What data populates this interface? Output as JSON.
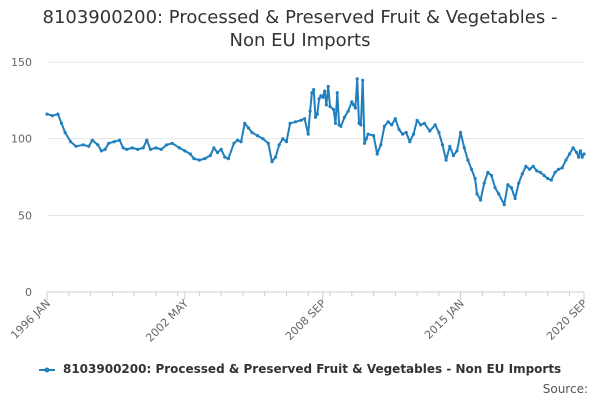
{
  "chart_data": {
    "type": "line",
    "title_lines": [
      "8103900200: Processed & Preserved Fruit & Vegetables -",
      "Non EU Imports"
    ],
    "xlabel": "",
    "ylabel": "",
    "ylim": [
      0,
      150
    ],
    "yticks": [
      0,
      50,
      100,
      150
    ],
    "xlim": [
      "1996-01",
      "2020-09"
    ],
    "xtick_labels": [
      {
        "date": "1996-01",
        "label": "1996 JAN"
      },
      {
        "date": "2002-05",
        "label": "2002 MAY"
      },
      {
        "date": "2008-09",
        "label": "2008 SEP"
      },
      {
        "date": "2015-01",
        "label": "2015 JAN"
      },
      {
        "date": "2020-09",
        "label": "2020 SEP"
      }
    ],
    "grid": true,
    "legend_position": "bottom",
    "series": [
      {
        "name": "8103900200: Processed & Preserved Fruit & Vegetables - Non EU Imports",
        "color": "#1f7fbf",
        "points": [
          [
            "1996-01",
            116
          ],
          [
            "1996-04",
            115
          ],
          [
            "1996-07",
            116
          ],
          [
            "1996-09",
            110
          ],
          [
            "1996-11",
            104
          ],
          [
            "1997-02",
            98
          ],
          [
            "1997-05",
            95
          ],
          [
            "1997-09",
            96
          ],
          [
            "1997-12",
            95
          ],
          [
            "1998-02",
            99
          ],
          [
            "1998-05",
            96
          ],
          [
            "1998-07",
            92
          ],
          [
            "1998-09",
            93
          ],
          [
            "1998-11",
            97
          ],
          [
            "1999-02",
            98
          ],
          [
            "1999-05",
            99
          ],
          [
            "1999-07",
            94
          ],
          [
            "1999-09",
            93
          ],
          [
            "1999-12",
            94
          ],
          [
            "2000-03",
            93
          ],
          [
            "2000-06",
            94
          ],
          [
            "2000-08",
            99
          ],
          [
            "2000-10",
            93
          ],
          [
            "2001-01",
            94
          ],
          [
            "2001-04",
            93
          ],
          [
            "2001-07",
            96
          ],
          [
            "2001-10",
            97
          ],
          [
            "2002-02",
            94
          ],
          [
            "2002-05",
            92
          ],
          [
            "2002-08",
            90
          ],
          [
            "2002-10",
            87
          ],
          [
            "2003-01",
            86
          ],
          [
            "2003-04",
            87
          ],
          [
            "2003-07",
            89
          ],
          [
            "2003-09",
            94
          ],
          [
            "2003-11",
            91
          ],
          [
            "2004-01",
            93
          ],
          [
            "2004-03",
            88
          ],
          [
            "2004-05",
            87
          ],
          [
            "2004-08",
            97
          ],
          [
            "2004-10",
            99
          ],
          [
            "2004-12",
            98
          ],
          [
            "2005-02",
            110
          ],
          [
            "2005-04",
            107
          ],
          [
            "2005-06",
            104
          ],
          [
            "2005-09",
            102
          ],
          [
            "2005-12",
            100
          ],
          [
            "2006-03",
            97
          ],
          [
            "2006-05",
            85
          ],
          [
            "2006-07",
            88
          ],
          [
            "2006-09",
            96
          ],
          [
            "2006-11",
            100
          ],
          [
            "2007-01",
            98
          ],
          [
            "2007-03",
            110
          ],
          [
            "2007-06",
            111
          ],
          [
            "2007-09",
            112
          ],
          [
            "2007-11",
            113
          ],
          [
            "2008-01",
            103
          ],
          [
            "2008-02",
            118
          ],
          [
            "2008-03",
            130
          ],
          [
            "2008-04",
            132
          ],
          [
            "2008-05",
            114
          ],
          [
            "2008-06",
            116
          ],
          [
            "2008-07",
            126
          ],
          [
            "2008-08",
            128
          ],
          [
            "2008-09",
            127
          ],
          [
            "2008-10",
            131
          ],
          [
            "2008-11",
            122
          ],
          [
            "2008-12",
            134
          ],
          [
            "2009-01",
            121
          ],
          [
            "2009-03",
            119
          ],
          [
            "2009-04",
            110
          ],
          [
            "2009-05",
            130
          ],
          [
            "2009-06",
            109
          ],
          [
            "2009-07",
            108
          ],
          [
            "2009-09",
            114
          ],
          [
            "2009-11",
            118
          ],
          [
            "2010-01",
            124
          ],
          [
            "2010-02",
            122
          ],
          [
            "2010-03",
            120
          ],
          [
            "2010-04",
            139
          ],
          [
            "2010-05",
            110
          ],
          [
            "2010-06",
            109
          ],
          [
            "2010-07",
            138
          ],
          [
            "2010-08",
            97
          ],
          [
            "2010-09",
            100
          ],
          [
            "2010-10",
            103
          ],
          [
            "2011-01",
            102
          ],
          [
            "2011-03",
            90
          ],
          [
            "2011-05",
            96
          ],
          [
            "2011-07",
            108
          ],
          [
            "2011-09",
            111
          ],
          [
            "2011-11",
            109
          ],
          [
            "2012-01",
            113
          ],
          [
            "2012-03",
            106
          ],
          [
            "2012-05",
            103
          ],
          [
            "2012-07",
            104
          ],
          [
            "2012-09",
            98
          ],
          [
            "2012-11",
            103
          ],
          [
            "2013-01",
            112
          ],
          [
            "2013-03",
            109
          ],
          [
            "2013-05",
            110
          ],
          [
            "2013-08",
            105
          ],
          [
            "2013-11",
            109
          ],
          [
            "2014-01",
            104
          ],
          [
            "2014-03",
            96
          ],
          [
            "2014-05",
            86
          ],
          [
            "2014-07",
            95
          ],
          [
            "2014-09",
            89
          ],
          [
            "2014-11",
            92
          ],
          [
            "2015-01",
            104
          ],
          [
            "2015-03",
            94
          ],
          [
            "2015-05",
            86
          ],
          [
            "2015-07",
            80
          ],
          [
            "2015-09",
            74
          ],
          [
            "2015-10",
            64
          ],
          [
            "2015-12",
            60
          ],
          [
            "2016-02",
            71
          ],
          [
            "2016-04",
            78
          ],
          [
            "2016-06",
            76
          ],
          [
            "2016-08",
            68
          ],
          [
            "2016-10",
            64
          ],
          [
            "2017-01",
            57
          ],
          [
            "2017-03",
            70
          ],
          [
            "2017-05",
            68
          ],
          [
            "2017-07",
            61
          ],
          [
            "2017-09",
            71
          ],
          [
            "2017-11",
            77
          ],
          [
            "2018-01",
            82
          ],
          [
            "2018-03",
            80
          ],
          [
            "2018-05",
            82
          ],
          [
            "2018-07",
            79
          ],
          [
            "2018-09",
            78
          ],
          [
            "2018-11",
            76
          ],
          [
            "2019-01",
            74
          ],
          [
            "2019-03",
            73
          ],
          [
            "2019-05",
            78
          ],
          [
            "2019-07",
            80
          ],
          [
            "2019-09",
            81
          ],
          [
            "2019-11",
            86
          ],
          [
            "2020-01",
            90
          ],
          [
            "2020-03",
            94
          ],
          [
            "2020-05",
            91
          ],
          [
            "2020-06",
            88
          ],
          [
            "2020-07",
            92
          ],
          [
            "2020-08",
            88
          ],
          [
            "2020-09",
            90
          ]
        ]
      }
    ]
  },
  "source_label": "Source:"
}
